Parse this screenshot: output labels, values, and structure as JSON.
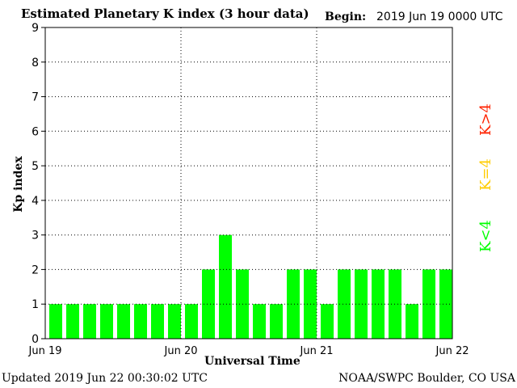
{
  "header": {
    "title": "Estimated Planetary K index (3 hour data)",
    "begin_label": "Begin:",
    "begin_value": "2019 Jun 19 0000 UTC"
  },
  "footer": {
    "updated": "Updated 2019 Jun 22 00:30:02 UTC",
    "credit": "NOAA/SWPC Boulder, CO USA"
  },
  "legend": {
    "high": "K>4",
    "mid": "K=4",
    "low": "K<4"
  },
  "colors": {
    "low": "#00ff00",
    "mid": "#ffcc00",
    "high": "#ff2200",
    "grid": "#000000"
  },
  "chart_data": {
    "type": "bar",
    "title": "Estimated Planetary K index (3 hour data)",
    "xlabel": "Universal Time",
    "ylabel": "Kp index",
    "ylim": [
      0,
      9
    ],
    "yticks": [
      0,
      1,
      2,
      3,
      4,
      5,
      6,
      7,
      8,
      9
    ],
    "xticks": [
      "Jun 19",
      "Jun 20",
      "Jun 21",
      "Jun 22"
    ],
    "grid": true,
    "legend_position": "right",
    "categories": [
      "Jun 19 00",
      "Jun 19 03",
      "Jun 19 06",
      "Jun 19 09",
      "Jun 19 12",
      "Jun 19 15",
      "Jun 19 18",
      "Jun 19 21",
      "Jun 20 00",
      "Jun 20 03",
      "Jun 20 06",
      "Jun 20 09",
      "Jun 20 12",
      "Jun 20 15",
      "Jun 20 18",
      "Jun 20 21",
      "Jun 21 00",
      "Jun 21 03",
      "Jun 21 06",
      "Jun 21 09",
      "Jun 21 12",
      "Jun 21 15",
      "Jun 21 18",
      "Jun 21 21"
    ],
    "values": [
      1,
      1,
      1,
      1,
      1,
      1,
      1,
      1,
      1,
      2,
      3,
      2,
      1,
      1,
      2,
      2,
      1,
      2,
      2,
      2,
      2,
      1,
      2,
      2
    ]
  }
}
